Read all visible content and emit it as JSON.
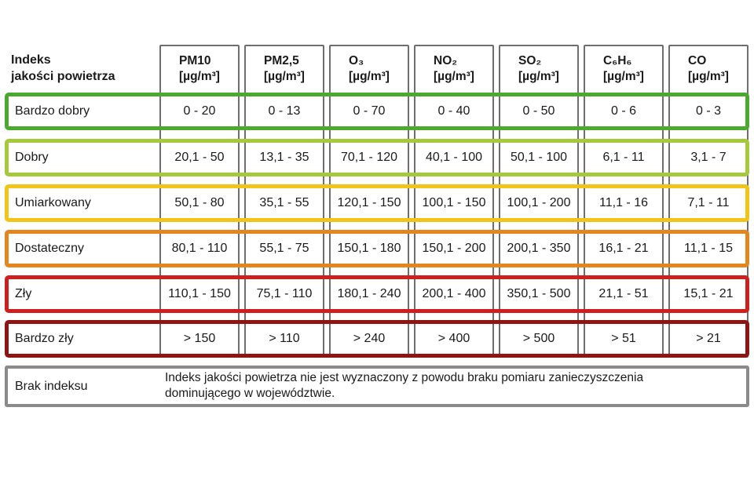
{
  "chart_data": {
    "type": "table",
    "title_header": {
      "line1": "Indeks",
      "line2": "jakości powietrza"
    },
    "columns": [
      {
        "name": "PM10",
        "unit": "[µg/m³]"
      },
      {
        "name": "PM2,5",
        "unit": "[µg/m³]"
      },
      {
        "name": "O₃",
        "unit": "[µg/m³]"
      },
      {
        "name": "NO₂",
        "unit": "[µg/m³]"
      },
      {
        "name": "SO₂",
        "unit": "[µg/m³]"
      },
      {
        "name": "C₆H₆",
        "unit": "[µg/m³]"
      },
      {
        "name": "CO",
        "unit": "[µg/m³]"
      }
    ],
    "rows": [
      {
        "label": "Bardzo dobry",
        "color": "#4CA930",
        "values": [
          "0 - 20",
          "0 - 13",
          "0 - 70",
          "0 - 40",
          "0 - 50",
          "0 - 6",
          "0 - 3"
        ]
      },
      {
        "label": "Dobry",
        "color": "#A6C93B",
        "values": [
          "20,1 - 50",
          "13,1 - 35",
          "70,1 - 120",
          "40,1 - 100",
          "50,1 - 100",
          "6,1 - 11",
          "3,1 - 7"
        ]
      },
      {
        "label": "Umiarkowany",
        "color": "#F0C419",
        "values": [
          "50,1 - 80",
          "35,1 - 55",
          "120,1 - 150",
          "100,1 - 150",
          "100,1 - 200",
          "11,1 - 16",
          "7,1 - 11"
        ]
      },
      {
        "label": "Dostateczny",
        "color": "#E2861D",
        "values": [
          "80,1 - 110",
          "55,1 - 75",
          "150,1 - 180",
          "150,1 - 200",
          "200,1 - 350",
          "16,1 - 21",
          "11,1 - 15"
        ]
      },
      {
        "label": "Zły",
        "color": "#CE1F1F",
        "values": [
          "110,1 - 150",
          "75,1 - 110",
          "180,1 - 240",
          "200,1 - 400",
          "350,1 - 500",
          "21,1 - 51",
          "15,1 - 21"
        ]
      },
      {
        "label": "Bardzo zły",
        "color": "#911414",
        "values": [
          "> 150",
          "> 110",
          "> 240",
          "> 400",
          "> 500",
          "> 51",
          "> 21"
        ]
      }
    ],
    "no_index_row": {
      "label": "Brak indeksu",
      "description": "Indeks jakości powietrza nie jest wyznaczony z powodu braku pomiaru zanieczyszczenia dominującego w województwie."
    },
    "colors": {
      "grid": "#6e6e6e",
      "no_index_border": "#8a8a8a",
      "text": "#1a1a1a"
    }
  }
}
